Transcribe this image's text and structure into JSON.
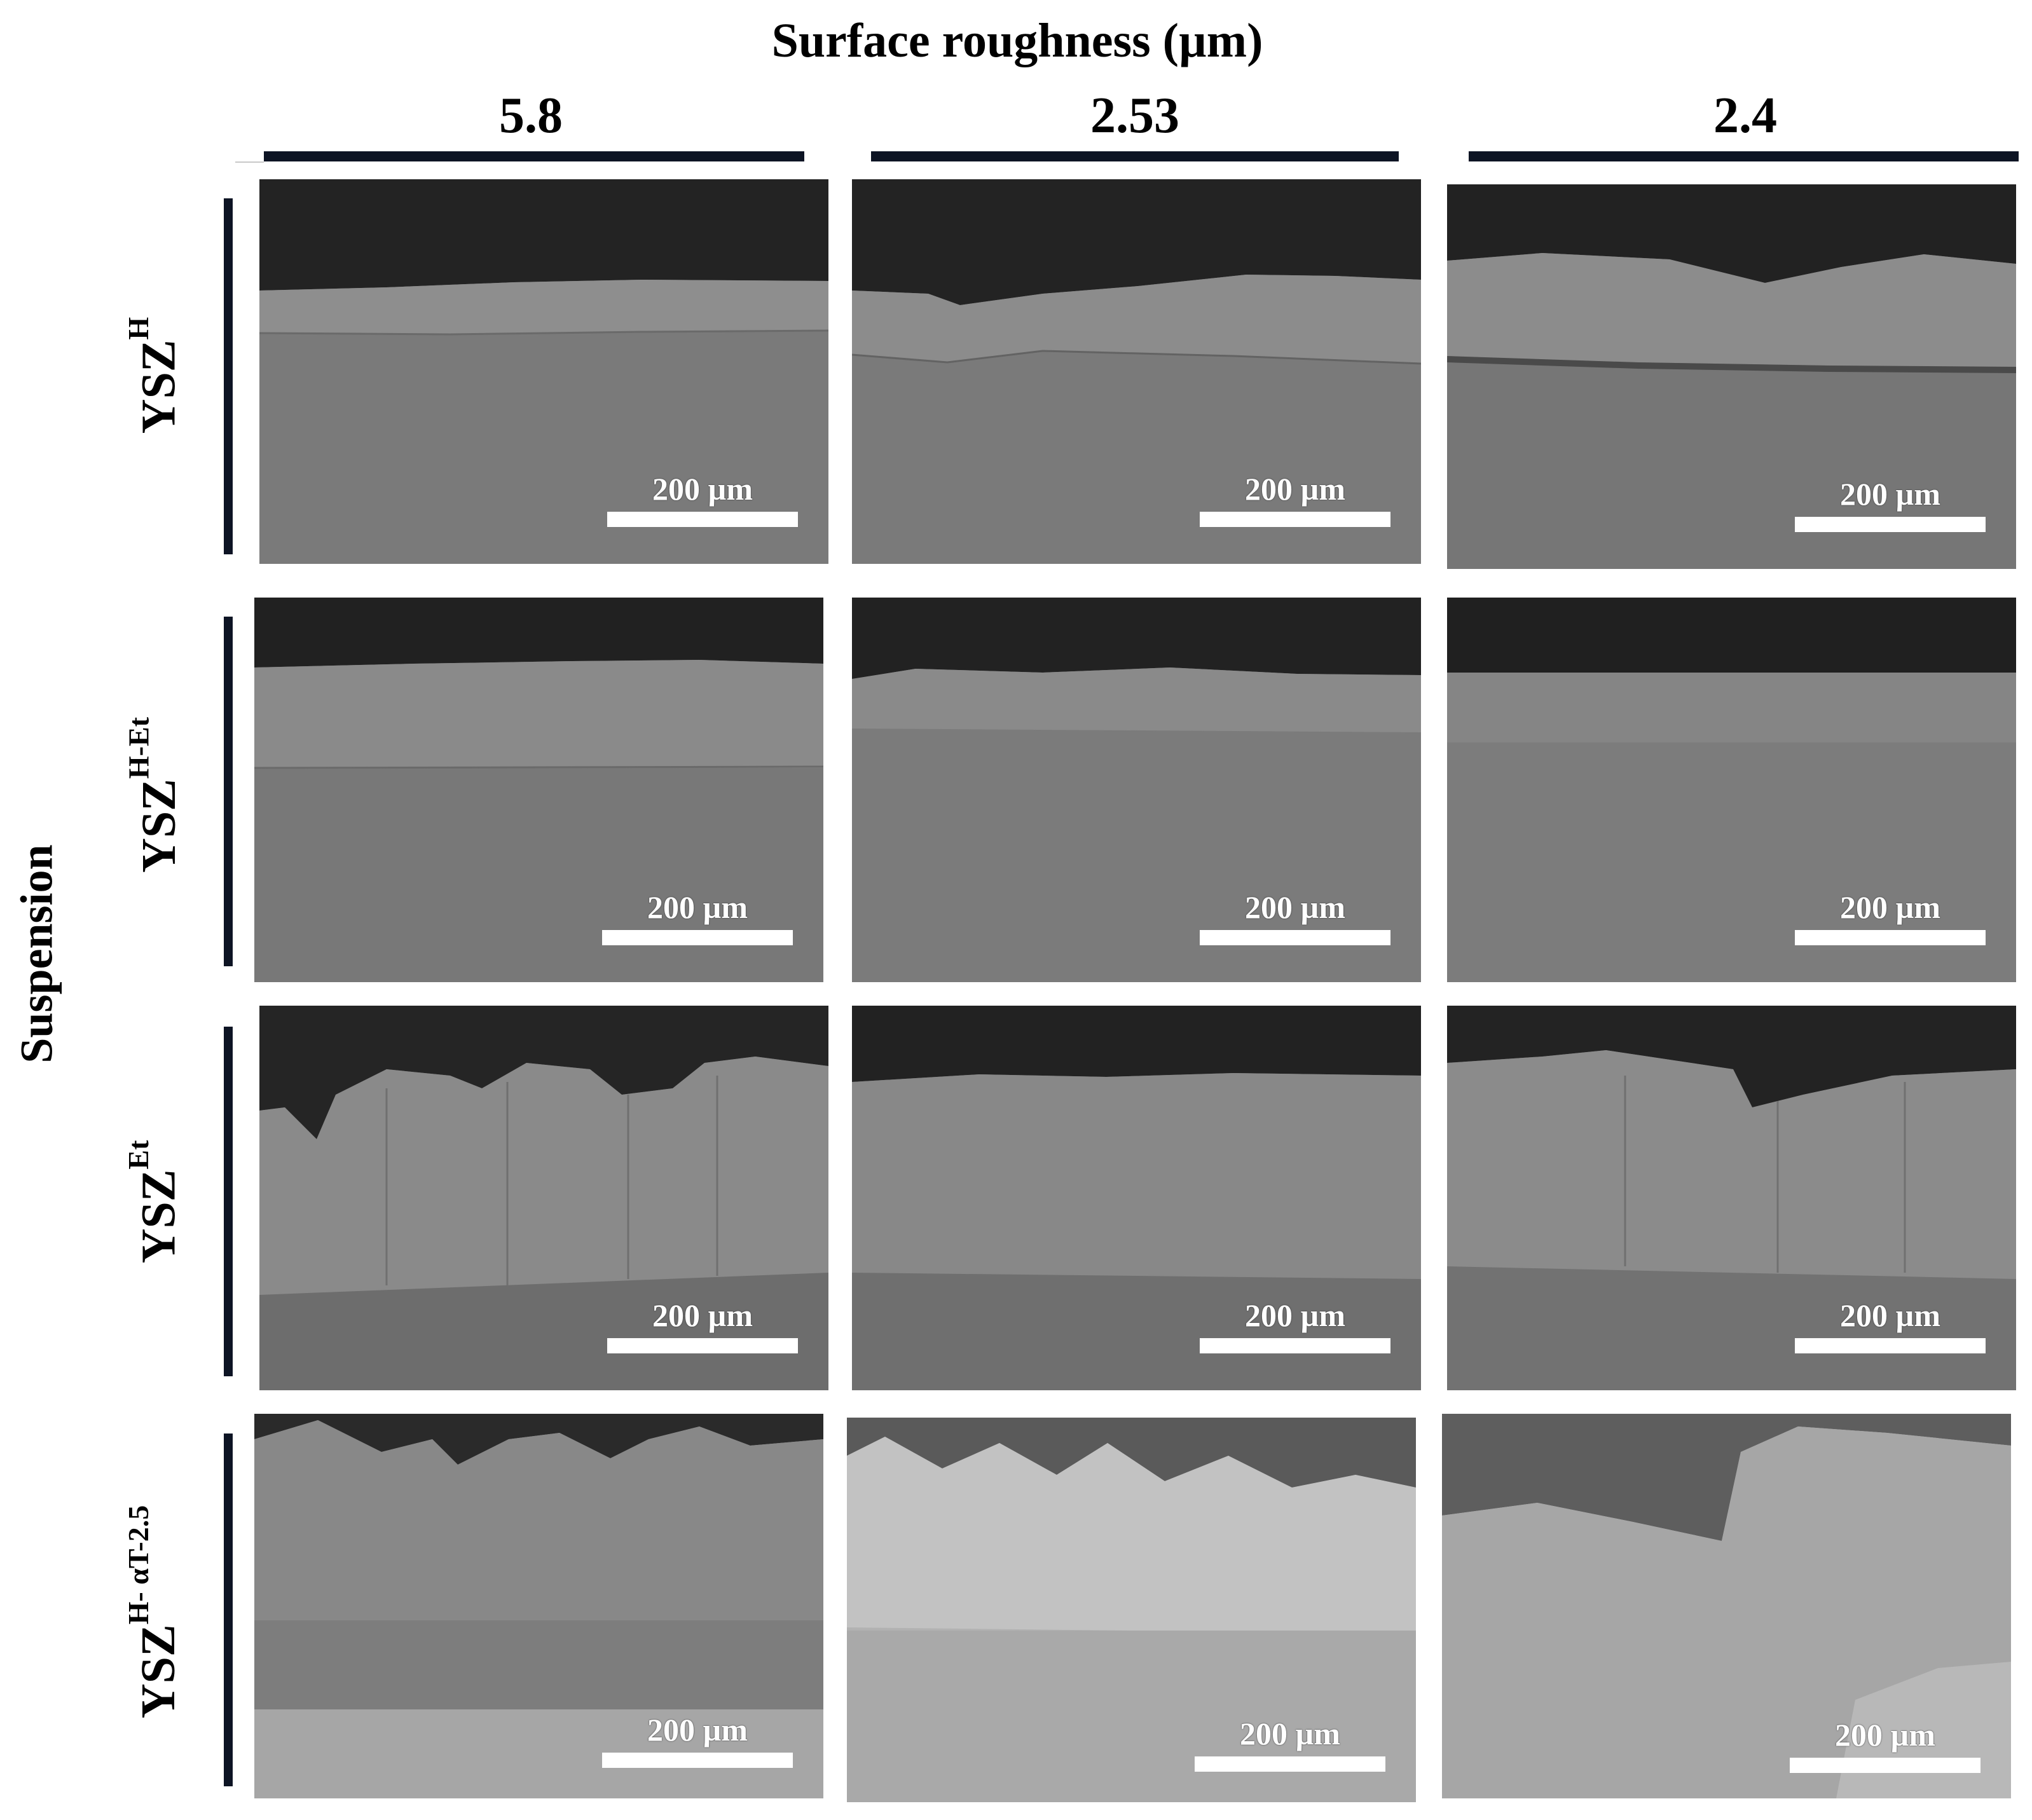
{
  "figure": {
    "title": "Surface roughness (µm)",
    "side_label": "Suspension",
    "columns": [
      "5.8",
      "2.53",
      "2.4"
    ],
    "rows": [
      {
        "base": "YSZ",
        "sup": "H"
      },
      {
        "base": "YSZ",
        "sup": "H-Et"
      },
      {
        "base": "YSZ",
        "sup": "Et"
      },
      {
        "base": "YSZ",
        "sup": "H- αT-2.5"
      }
    ],
    "scale_bar_label": "200 µm",
    "colors": {
      "mounting_resin": "#222222",
      "coating_row1_2": "#8c8c8c",
      "substrate": "#787878",
      "row4_coating": "#9e9e9e",
      "bar": "#0d1424"
    }
  }
}
